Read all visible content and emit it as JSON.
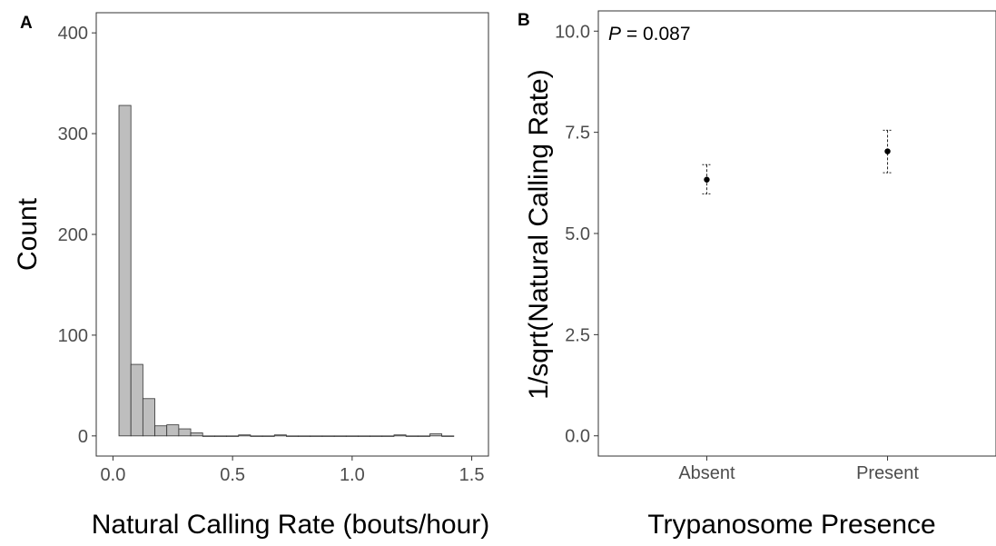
{
  "panels": [
    {
      "label": "A"
    },
    {
      "label": "B"
    }
  ],
  "chart_data": [
    {
      "type": "bar",
      "subtype": "histogram",
      "panel": "A",
      "title": "",
      "xlabel": "Natural Calling Rate (bouts/hour)",
      "ylabel": "Count",
      "xlim": [
        -0.07,
        1.57
      ],
      "ylim": [
        -20,
        420
      ],
      "xticks": [
        0.0,
        0.5,
        1.0,
        1.5
      ],
      "xtick_labels": [
        "0.0",
        "0.5",
        "1.0",
        "1.5"
      ],
      "yticks": [
        0,
        100,
        200,
        300,
        400
      ],
      "ytick_labels": [
        "0",
        "100",
        "200",
        "300",
        "400"
      ],
      "bin_width": 0.05,
      "bin_start": 0.025,
      "counts": [
        328,
        71,
        37,
        10,
        11,
        7,
        3,
        0,
        0,
        0,
        1,
        0,
        0,
        1,
        0,
        0,
        0,
        0,
        0,
        0,
        0,
        0,
        0,
        1,
        0,
        0,
        2,
        0
      ],
      "bar_fill": "#bebebe",
      "bar_stroke": "#333333",
      "grid": false
    },
    {
      "type": "scatter",
      "subtype": "point-errorbar",
      "panel": "B",
      "title": "",
      "xlabel": "Trypanosome Presence",
      "ylabel": "1/sqrt(Natural Calling Rate)",
      "categories": [
        "Absent",
        "Present"
      ],
      "ylim": [
        -0.5,
        10.5
      ],
      "yticks": [
        0.0,
        2.5,
        5.0,
        7.5,
        10.0
      ],
      "ytick_labels": [
        "0.0",
        "2.5",
        "5.0",
        "7.5",
        "10.0"
      ],
      "points": [
        {
          "category": "Absent",
          "mean": 6.33,
          "lower": 5.98,
          "upper": 6.7
        },
        {
          "category": "Present",
          "mean": 7.03,
          "lower": 6.5,
          "upper": 7.55
        }
      ],
      "annotation": {
        "p_label": "P",
        "p_value": " = 0.087"
      },
      "grid": false
    }
  ]
}
